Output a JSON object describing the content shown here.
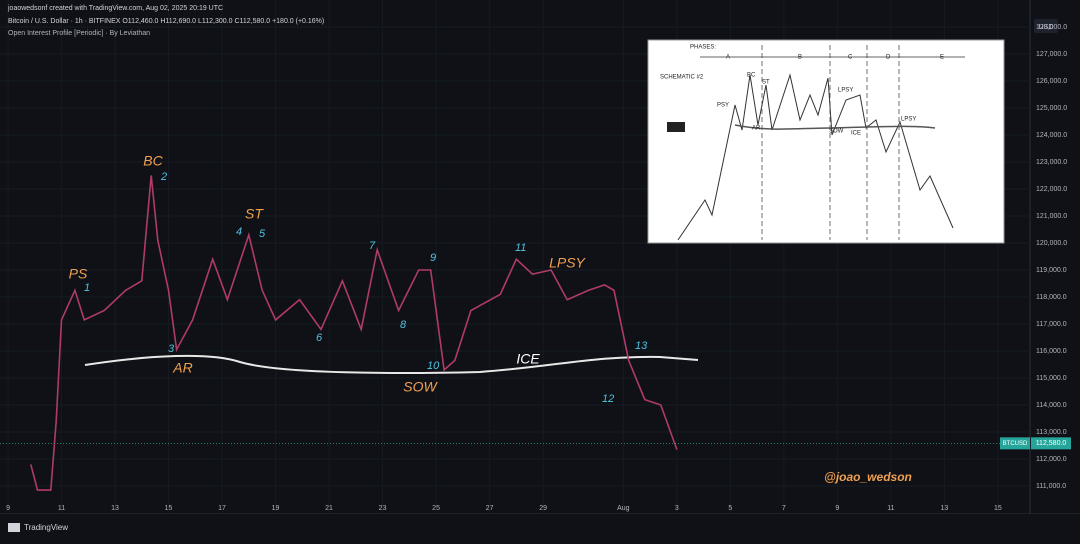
{
  "header": {
    "author": "joaowedsonf created with TradingView.com, Aug 02, 2025 20:19 UTC",
    "symbol": "Bitcoin / U.S. Dollar · 1h · BITFINEX  O112,460.0  H112,690.0  L112,300.0  C112,580.0  +180.0 (+0.16%)",
    "indicator": "Open Interest Profile [Periodic] · By Leviathan",
    "currency": "USD",
    "brand": "TradingView"
  },
  "chart_data": {
    "type": "line",
    "x": [
      0.85,
      1.1,
      1.6,
      1.8,
      2.0,
      2.5,
      2.85,
      3.6,
      4.4,
      5.0,
      5.35,
      5.6,
      6.0,
      6.3,
      6.9,
      7.65,
      8.2,
      9.0,
      9.5,
      10.0,
      10.9,
      11.7,
      12.5,
      13.2,
      13.8,
      14.6,
      15.35,
      15.8,
      16.3,
      16.7,
      17.3,
      18.4,
      19.0,
      19.6,
      20.3,
      20.9,
      21.7,
      22.3,
      22.65,
      23.2,
      23.8,
      24.4,
      25.0
    ],
    "series": [
      {
        "name": "BTCUSD",
        "color": "#b03a6a",
        "values": [
          111800,
          110850,
          110850,
          113400,
          117150,
          118250,
          117150,
          117500,
          118250,
          118600,
          122500,
          120100,
          118250,
          116050,
          117150,
          119400,
          117900,
          120300,
          118250,
          117150,
          117900,
          116800,
          118600,
          116800,
          119750,
          117500,
          119000,
          119000,
          115300,
          115650,
          117500,
          118100,
          119400,
          118850,
          119000,
          117900,
          118250,
          118450,
          118250,
          115650,
          114200,
          114000,
          112350
        ]
      }
    ],
    "last_price": 112580,
    "last_price_label": "112,580.0",
    "xlim": [
      -0.3,
      38.2
    ],
    "xticks": [
      {
        "value": 0,
        "label": "9"
      },
      {
        "value": 2,
        "label": "11"
      },
      {
        "value": 4,
        "label": "13"
      },
      {
        "value": 6,
        "label": "15"
      },
      {
        "value": 8,
        "label": "17"
      },
      {
        "value": 10,
        "label": "19"
      },
      {
        "value": 12,
        "label": "21"
      },
      {
        "value": 14,
        "label": "23"
      },
      {
        "value": 16,
        "label": "25"
      },
      {
        "value": 18,
        "label": "27"
      },
      {
        "value": 20,
        "label": "29"
      },
      {
        "value": 23,
        "label": "Aug"
      },
      {
        "value": 25,
        "label": "3"
      },
      {
        "value": 27,
        "label": "5"
      },
      {
        "value": 29,
        "label": "7"
      },
      {
        "value": 31,
        "label": "9"
      },
      {
        "value": 33,
        "label": "11"
      },
      {
        "value": 35,
        "label": "13"
      },
      {
        "value": 37,
        "label": "15"
      }
    ],
    "ylim": [
      110000,
      129000
    ],
    "yticks": [
      {
        "value": 111000,
        "label": "111,000.0"
      },
      {
        "value": 112000,
        "label": "112,000.0"
      },
      {
        "value": 113000,
        "label": "113,000.0"
      },
      {
        "value": 114000,
        "label": "114,000.0"
      },
      {
        "value": 115000,
        "label": "115,000.0"
      },
      {
        "value": 116000,
        "label": "116,000.0"
      },
      {
        "value": 117000,
        "label": "117,000.0"
      },
      {
        "value": 118000,
        "label": "118,000.0"
      },
      {
        "value": 119000,
        "label": "119,000.0"
      },
      {
        "value": 120000,
        "label": "120,000.0"
      },
      {
        "value": 121000,
        "label": "121,000.0"
      },
      {
        "value": 122000,
        "label": "122,000.0"
      },
      {
        "value": 123000,
        "label": "123,000.0"
      },
      {
        "value": 124000,
        "label": "124,000.0"
      },
      {
        "value": 125000,
        "label": "125,000.0"
      },
      {
        "value": 126000,
        "label": "126,000.0"
      },
      {
        "value": 127000,
        "label": "127,000.0"
      },
      {
        "value": 128000,
        "label": "128,000.0"
      }
    ],
    "annotations": [
      "PS",
      "BC",
      "ST",
      "AR",
      "SOW",
      "ICE",
      "LPSY",
      "1",
      "2",
      "3",
      "4",
      "5",
      "6",
      "7",
      "8",
      "9",
      "10",
      "11",
      "12",
      "13",
      "@joao_wedson"
    ]
  },
  "inset": {
    "phases": "PHASES:",
    "schematic": "SCHEMATIC #2",
    "labels": [
      "A",
      "B",
      "C",
      "D",
      "E",
      "PSY",
      "BC",
      "ST",
      "AR",
      "SOW",
      "ICE",
      "LPSY",
      "SOW"
    ]
  }
}
